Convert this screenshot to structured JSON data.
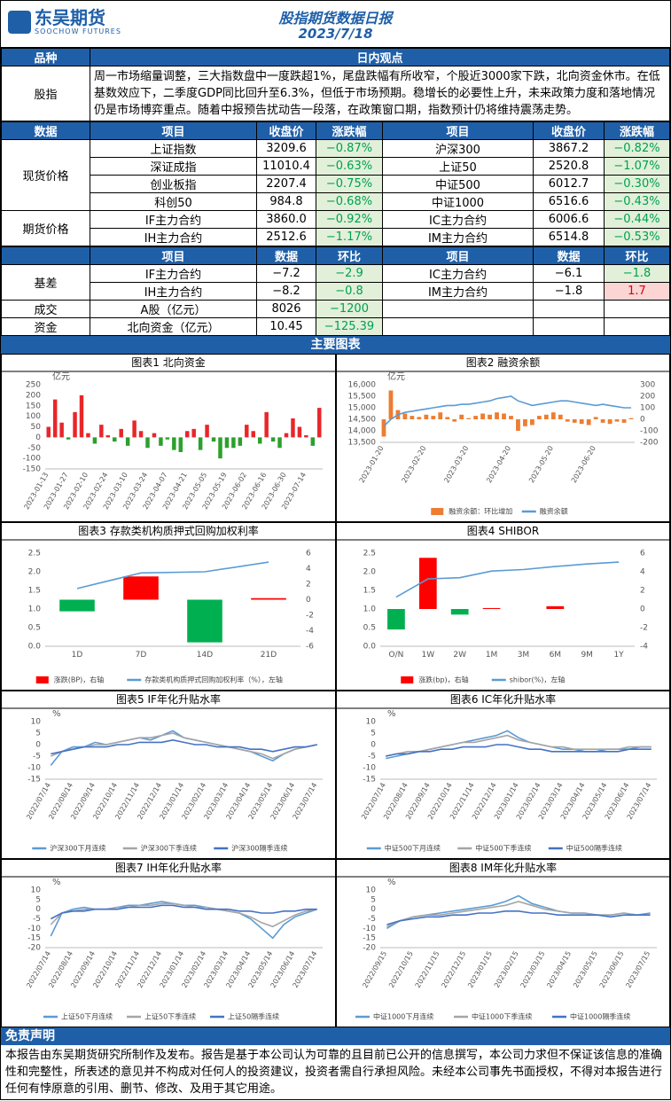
{
  "header": {
    "logo_cn": "东吴期货",
    "logo_en": "SOOCHOW FUTURES",
    "title": "股指期货数据日报",
    "date": "2023/7/18"
  },
  "view": {
    "headers": [
      "品种",
      "日内观点"
    ],
    "label": "股指",
    "text": "周一市场缩量调整，三大指数盘中一度跌超1%，尾盘跌幅有所收窄，个股近3000家下跌，北向资金休市。在低基数效应下，二季度GDP同比回升至6.3%，但低于市场预期。稳增长的必要性上升，未来政策力度和落地情况仍是市场博弈重点。随着中报预告扰动告一段落，在政策窗口期，指数预计仍将维持震荡走势。"
  },
  "market_table": {
    "headers": [
      "数据",
      "项目",
      "收盘价",
      "涨跌幅",
      "项目",
      "收盘价",
      "涨跌幅"
    ],
    "groups": [
      {
        "label": "现货价格",
        "rows": [
          [
            "上证指数",
            "3209.6",
            "−0.87%",
            "沪深300",
            "3867.2",
            "−0.82%"
          ],
          [
            "深证成指",
            "11010.4",
            "−0.63%",
            "上证50",
            "2520.8",
            "−1.07%"
          ],
          [
            "创业板指",
            "2207.4",
            "−0.75%",
            "中证500",
            "6012.7",
            "−0.30%"
          ],
          [
            "科创50",
            "984.8",
            "−0.68%",
            "中证1000",
            "6516.6",
            "−0.43%"
          ]
        ]
      },
      {
        "label": "期货价格",
        "rows": [
          [
            "IF主力合约",
            "3860.0",
            "−0.92%",
            "IC主力合约",
            "6006.6",
            "−0.44%"
          ],
          [
            "IH主力合约",
            "2512.6",
            "−1.17%",
            "IM主力合约",
            "6514.8",
            "−0.53%"
          ]
        ]
      }
    ]
  },
  "basis_table": {
    "headers": [
      "项目",
      "数据",
      "环比",
      "项目",
      "数据",
      "环比"
    ],
    "groups": [
      {
        "label": "基差",
        "rows": [
          [
            "IF主力合约",
            "−7.2",
            "−2.9",
            "IC主力合约",
            "−6.1",
            "−1.8"
          ],
          [
            "IH主力合约",
            "−8.2",
            "−0.8",
            "IM主力合约",
            "−1.8",
            "1.7"
          ]
        ]
      },
      {
        "label": "成交",
        "rows": [
          [
            "A股（亿元）",
            "8026",
            "−1200"
          ]
        ]
      },
      {
        "label": "资金",
        "rows": [
          [
            "北向资金（亿元）",
            "10.45",
            "−125.39"
          ]
        ]
      }
    ]
  },
  "charts_heading": "主要图表",
  "charts": [
    {
      "type": "bar",
      "title": "图表1  北向资金",
      "unit": "亿元",
      "categories": [
        "2023-01-13",
        null,
        null,
        "2023-01-27",
        null,
        null,
        "2023-02-10",
        null,
        null,
        "2023-02-24",
        null,
        null,
        "2023-03-10",
        null,
        null,
        "2023-03-24",
        null,
        null,
        "2023-04-07",
        null,
        null,
        "2023-04-21",
        null,
        null,
        "2023-05-05",
        null,
        null,
        "2023-05-19",
        null,
        null,
        "2023-06-02",
        null,
        null,
        "2023-06-16",
        null,
        null,
        "2023-06-30",
        null,
        null,
        "2023-07-14",
        null,
        null
      ],
      "series": [
        {
          "kind": "bar",
          "color": "#e8262a",
          "negative_color": "#2ca02c",
          "values": [
            50,
            180,
            70,
            -10,
            120,
            200,
            20,
            -30,
            60,
            10,
            -20,
            40,
            -40,
            80,
            30,
            -50,
            20,
            -40,
            -10,
            -60,
            -70,
            30,
            40,
            -60,
            60,
            -20,
            -100,
            -50,
            -50,
            -40,
            60,
            30,
            -30,
            120,
            -20,
            -50,
            20,
            90,
            50,
            10,
            -40,
            140
          ]
        }
      ],
      "ylim": [
        -150,
        250
      ],
      "yticks": [
        -150,
        -100,
        -50,
        0,
        50,
        100,
        150,
        200,
        250
      ]
    },
    {
      "type": "combo",
      "title": "图表2  融资余额",
      "unit": "亿元",
      "categories": [
        "2023-01-20",
        null,
        null,
        null,
        null,
        null,
        "2023-02-20",
        null,
        null,
        null,
        null,
        null,
        "2023-03-20",
        null,
        null,
        null,
        null,
        null,
        "2023-04-20",
        null,
        null,
        null,
        null,
        null,
        "2023-05-20",
        null,
        null,
        null,
        null,
        null,
        "2023-06-20",
        null,
        null,
        null,
        null,
        null
      ],
      "series": [
        {
          "name": "融资余额：环比增加",
          "kind": "bar",
          "axis": "y2",
          "color": "#ed7d31",
          "values": [
            -150,
            250,
            80,
            50,
            30,
            20,
            40,
            30,
            60,
            20,
            -20,
            40,
            10,
            30,
            50,
            40,
            60,
            50,
            30,
            -100,
            -60,
            -50,
            30,
            40,
            60,
            40,
            -20,
            -30,
            -40,
            -50,
            20,
            -30,
            -40,
            -20,
            -30,
            10
          ]
        },
        {
          "name": "融资余额",
          "kind": "line",
          "color": "#5b9bd5",
          "values": [
            14200,
            14500,
            14700,
            14800,
            14850,
            14900,
            14950,
            15000,
            15050,
            15100,
            15100,
            15150,
            15150,
            15200,
            15250,
            15300,
            15400,
            15450,
            15500,
            15300,
            15200,
            15100,
            15150,
            15200,
            15250,
            15300,
            15300,
            15250,
            15200,
            15150,
            15100,
            15150,
            15100,
            15050,
            15000,
            15000
          ]
        }
      ],
      "ylim": [
        13500,
        16000
      ],
      "yticks": [
        {
          "value": 13500,
          "label": "13,500"
        },
        {
          "value": 14000,
          "label": "14,000"
        },
        {
          "value": 14500,
          "label": "14,500"
        },
        {
          "value": 15000,
          "label": "15,000"
        },
        {
          "value": 15500,
          "label": "15,500"
        },
        {
          "value": 16000,
          "label": "16,000"
        }
      ],
      "y2lim": [
        -200,
        300
      ],
      "y2ticks": [
        -200,
        -100,
        0,
        100,
        200,
        300
      ]
    },
    {
      "type": "combo",
      "title": "图表3  存款类机构质押式回购加权利率",
      "categories": [
        "1D",
        "7D",
        "14D",
        "21D"
      ],
      "series": [
        {
          "name": "涨跌(BP)，右轴",
          "kind": "bar",
          "axis": "y2",
          "color": "#ff0000",
          "negative_color": "#00b050",
          "values": [
            -1.5,
            3,
            -5.5,
            0.2
          ]
        },
        {
          "name": "存款类机构质押式回购加权利率（%），左轴",
          "kind": "line",
          "color": "#5b9bd5",
          "values": [
            1.55,
            1.97,
            2.0,
            2.26
          ]
        }
      ],
      "ylim": [
        0,
        2.5
      ],
      "yticks": [
        {
          "value": 0,
          "label": "0.0"
        },
        0.5,
        {
          "value": 1,
          "label": "1.0"
        },
        1.5,
        {
          "value": 2,
          "label": "2.0"
        },
        2.5
      ],
      "y2lim": [
        -6,
        6
      ],
      "y2ticks": [
        -6,
        -4,
        -2,
        0,
        2,
        4,
        6
      ]
    },
    {
      "type": "combo",
      "title": "图表4  SHIBOR",
      "categories": [
        "O/N",
        "1W",
        "2W",
        "1M",
        "3M",
        "6M",
        "9M",
        "1Y"
      ],
      "series": [
        {
          "name": "涨跌(bp)，右轴",
          "kind": "bar",
          "axis": "y2",
          "color": "#ff0000",
          "negative_color": "#00b050",
          "values": [
            -2.2,
            5.5,
            -0.6,
            0.1,
            0,
            0.3,
            0,
            0
          ]
        },
        {
          "name": "shibor(%)，左轴",
          "kind": "line",
          "color": "#5b9bd5",
          "values": [
            1.32,
            1.81,
            1.84,
            2.02,
            2.06,
            2.14,
            2.21,
            2.26
          ]
        }
      ],
      "ylim": [
        0,
        2.5
      ],
      "yticks": [
        {
          "value": 0,
          "label": "0.0"
        },
        0.5,
        {
          "value": 1,
          "label": "1.0"
        },
        1.5,
        {
          "value": 2,
          "label": "2.0"
        },
        2.5
      ],
      "y2lim": [
        -4,
        6
      ],
      "y2ticks": [
        -4,
        -2,
        0,
        2,
        4,
        6
      ]
    },
    {
      "type": "line",
      "title": "图表5  IF年化升贴水率",
      "unit": "%",
      "categories": [
        "2022/07/14",
        null,
        "2022/08/14",
        null,
        "2022/09/14",
        null,
        "2022/10/14",
        null,
        "2022/11/14",
        null,
        "2022/12/14",
        null,
        "2023/01/14",
        null,
        "2023/02/14",
        null,
        "2023/03/14",
        null,
        "2023/04/14",
        null,
        "2023/05/14",
        null,
        "2023/06/14",
        null,
        "2023/07/14"
      ],
      "series": [
        {
          "name": "沪深300下月连续",
          "kind": "line",
          "color": "#5b9bd5",
          "values": [
            -9,
            -3,
            -1,
            -1,
            1,
            0,
            1,
            2,
            3,
            2,
            4,
            6,
            3,
            2,
            1,
            0,
            -1,
            -2,
            -3,
            -5,
            -7,
            -4,
            -2,
            -1,
            0
          ]
        },
        {
          "name": "沪深300下季连续",
          "kind": "line",
          "color": "#a5a5a5",
          "values": [
            -5,
            -3,
            -2,
            -1,
            0,
            0,
            1,
            2,
            3,
            3,
            4,
            5,
            3,
            2,
            1,
            0,
            -1,
            -2,
            -3,
            -4,
            -6,
            -4,
            -2,
            -1,
            0
          ]
        },
        {
          "name": "沪深300隔季连续",
          "kind": "line",
          "color": "#4472c4",
          "values": [
            -4,
            -3,
            -2,
            -1,
            -1,
            -1,
            0,
            0,
            1,
            1,
            1,
            2,
            1,
            0,
            0,
            -1,
            -1,
            -1,
            -2,
            -2,
            -3,
            -2,
            -1,
            -1,
            0
          ]
        }
      ],
      "ylim": [
        -15,
        10
      ],
      "yticks": [
        -15,
        -10,
        -5,
        0,
        5,
        10
      ]
    },
    {
      "type": "line",
      "title": "图表6  IC年化升贴水率",
      "unit": "%",
      "categories": [
        "2022/07/14",
        null,
        "2022/08/14",
        null,
        "2022/09/14",
        null,
        "2022/10/14",
        null,
        "2022/11/14",
        null,
        "2022/12/14",
        null,
        "2023/01/14",
        null,
        "2023/02/14",
        null,
        "2023/03/14",
        null,
        "2023/04/14",
        null,
        "2023/05/14",
        null,
        "2023/06/14",
        null,
        "2023/07/14"
      ],
      "series": [
        {
          "name": "中证500下月连续",
          "kind": "line",
          "color": "#5b9bd5",
          "values": [
            -6,
            -5,
            -4,
            -3,
            -2,
            -1,
            0,
            1,
            2,
            3,
            4,
            6,
            3,
            1,
            0,
            -1,
            -2,
            -2,
            -3,
            -3,
            -2,
            -2,
            -2,
            -1,
            -1
          ]
        },
        {
          "name": "中证500下季连续",
          "kind": "line",
          "color": "#a5a5a5",
          "values": [
            -5,
            -4,
            -3,
            -3,
            -2,
            -1,
            0,
            1,
            1,
            2,
            3,
            4,
            2,
            1,
            0,
            -1,
            -1,
            -2,
            -2,
            -2,
            -2,
            -2,
            -1,
            -1,
            -1
          ]
        },
        {
          "name": "中证500隔季连续",
          "kind": "line",
          "color": "#4472c4",
          "values": [
            -5,
            -4,
            -4,
            -3,
            -3,
            -2,
            -2,
            -1,
            -1,
            -1,
            0,
            0,
            -1,
            -2,
            -2,
            -3,
            -3,
            -3,
            -3,
            -3,
            -3,
            -3,
            -2,
            -2,
            -2
          ]
        }
      ],
      "ylim": [
        -15,
        10
      ],
      "yticks": [
        -15,
        -10,
        -5,
        0,
        5,
        10
      ]
    },
    {
      "type": "line",
      "title": "图表7  IH年化升贴水率",
      "unit": "%",
      "categories": [
        "2022/07/14",
        null,
        "2022/08/14",
        null,
        "2022/09/14",
        null,
        "2022/10/14",
        null,
        "2022/11/14",
        null,
        "2022/12/14",
        null,
        "2023/01/14",
        null,
        "2023/02/14",
        null,
        "2023/03/14",
        null,
        "2023/04/14",
        null,
        "2023/05/14",
        null,
        "2023/06/14",
        null,
        "2023/07/14"
      ],
      "series": [
        {
          "name": "上证50下月连续",
          "kind": "line",
          "color": "#5b9bd5",
          "values": [
            -14,
            -2,
            0,
            1,
            0,
            0,
            1,
            2,
            2,
            3,
            4,
            3,
            2,
            2,
            1,
            0,
            -1,
            -2,
            -5,
            -10,
            -15,
            -8,
            -4,
            -2,
            0
          ]
        },
        {
          "name": "上证50下季连续",
          "kind": "line",
          "color": "#a5a5a5",
          "values": [
            -8,
            -2,
            -1,
            0,
            0,
            0,
            1,
            1,
            2,
            2,
            3,
            3,
            2,
            1,
            1,
            0,
            -1,
            -2,
            -4,
            -7,
            -9,
            -6,
            -3,
            -1,
            0
          ]
        },
        {
          "name": "上证50隔季连续",
          "kind": "line",
          "color": "#4472c4",
          "values": [
            -5,
            -2,
            -1,
            -1,
            0,
            0,
            0,
            1,
            1,
            1,
            2,
            2,
            1,
            1,
            0,
            0,
            0,
            -1,
            -1,
            -2,
            -2,
            -1,
            -1,
            0,
            0
          ]
        }
      ],
      "ylim": [
        -20,
        10
      ],
      "yticks": [
        -20,
        -15,
        -10,
        -5,
        0,
        5,
        10
      ]
    },
    {
      "type": "line",
      "title": "图表8  IM年化升贴水率",
      "unit": "%",
      "categories": [
        "2022/09/15",
        null,
        "2022/10/15",
        null,
        "2022/11/15",
        null,
        "2022/12/15",
        null,
        "2023/01/15",
        null,
        "2023/02/15",
        null,
        "2023/03/15",
        null,
        "2023/04/15",
        null,
        "2023/05/15",
        null,
        "2023/06/15",
        null,
        "2023/07/15"
      ],
      "series": [
        {
          "name": "中证1000下月连续",
          "kind": "line",
          "color": "#5b9bd5",
          "values": [
            -10,
            -6,
            -4,
            -3,
            -2,
            -1,
            0,
            1,
            2,
            4,
            7,
            3,
            1,
            -1,
            -2,
            -2,
            -3,
            -3,
            -2,
            -3,
            -2
          ]
        },
        {
          "name": "中证1000下季连续",
          "kind": "line",
          "color": "#a5a5a5",
          "values": [
            -9,
            -6,
            -4,
            -3,
            -3,
            -2,
            -1,
            0,
            1,
            2,
            4,
            2,
            0,
            -1,
            -2,
            -2,
            -3,
            -3,
            -2,
            -3,
            -3
          ]
        },
        {
          "name": "中证1000隔季连续",
          "kind": "line",
          "color": "#4472c4",
          "values": [
            -8,
            -6,
            -5,
            -4,
            -4,
            -3,
            -3,
            -2,
            -2,
            -1,
            -1,
            -2,
            -2,
            -3,
            -3,
            -3,
            -3,
            -4,
            -3,
            -3,
            -3
          ]
        }
      ],
      "ylim": [
        -20,
        10
      ],
      "yticks": [
        -20,
        -15,
        -10,
        -5,
        0,
        5,
        10
      ]
    }
  ],
  "disclaimer": {
    "heading": "免责声明",
    "text": "本报告由东吴期货研究所制作及发布。报告是基于本公司认为可靠的且目前已公开的信息撰写，本公司力求但不保证该信息的准确性和完整性，所表述的意见并不构成对任何人的投资建议，投资者需自行承担风险。未经本公司事先书面授权，不得对本报告进行任何有悖原意的引用、删节、修改、及用于其它用途。"
  }
}
